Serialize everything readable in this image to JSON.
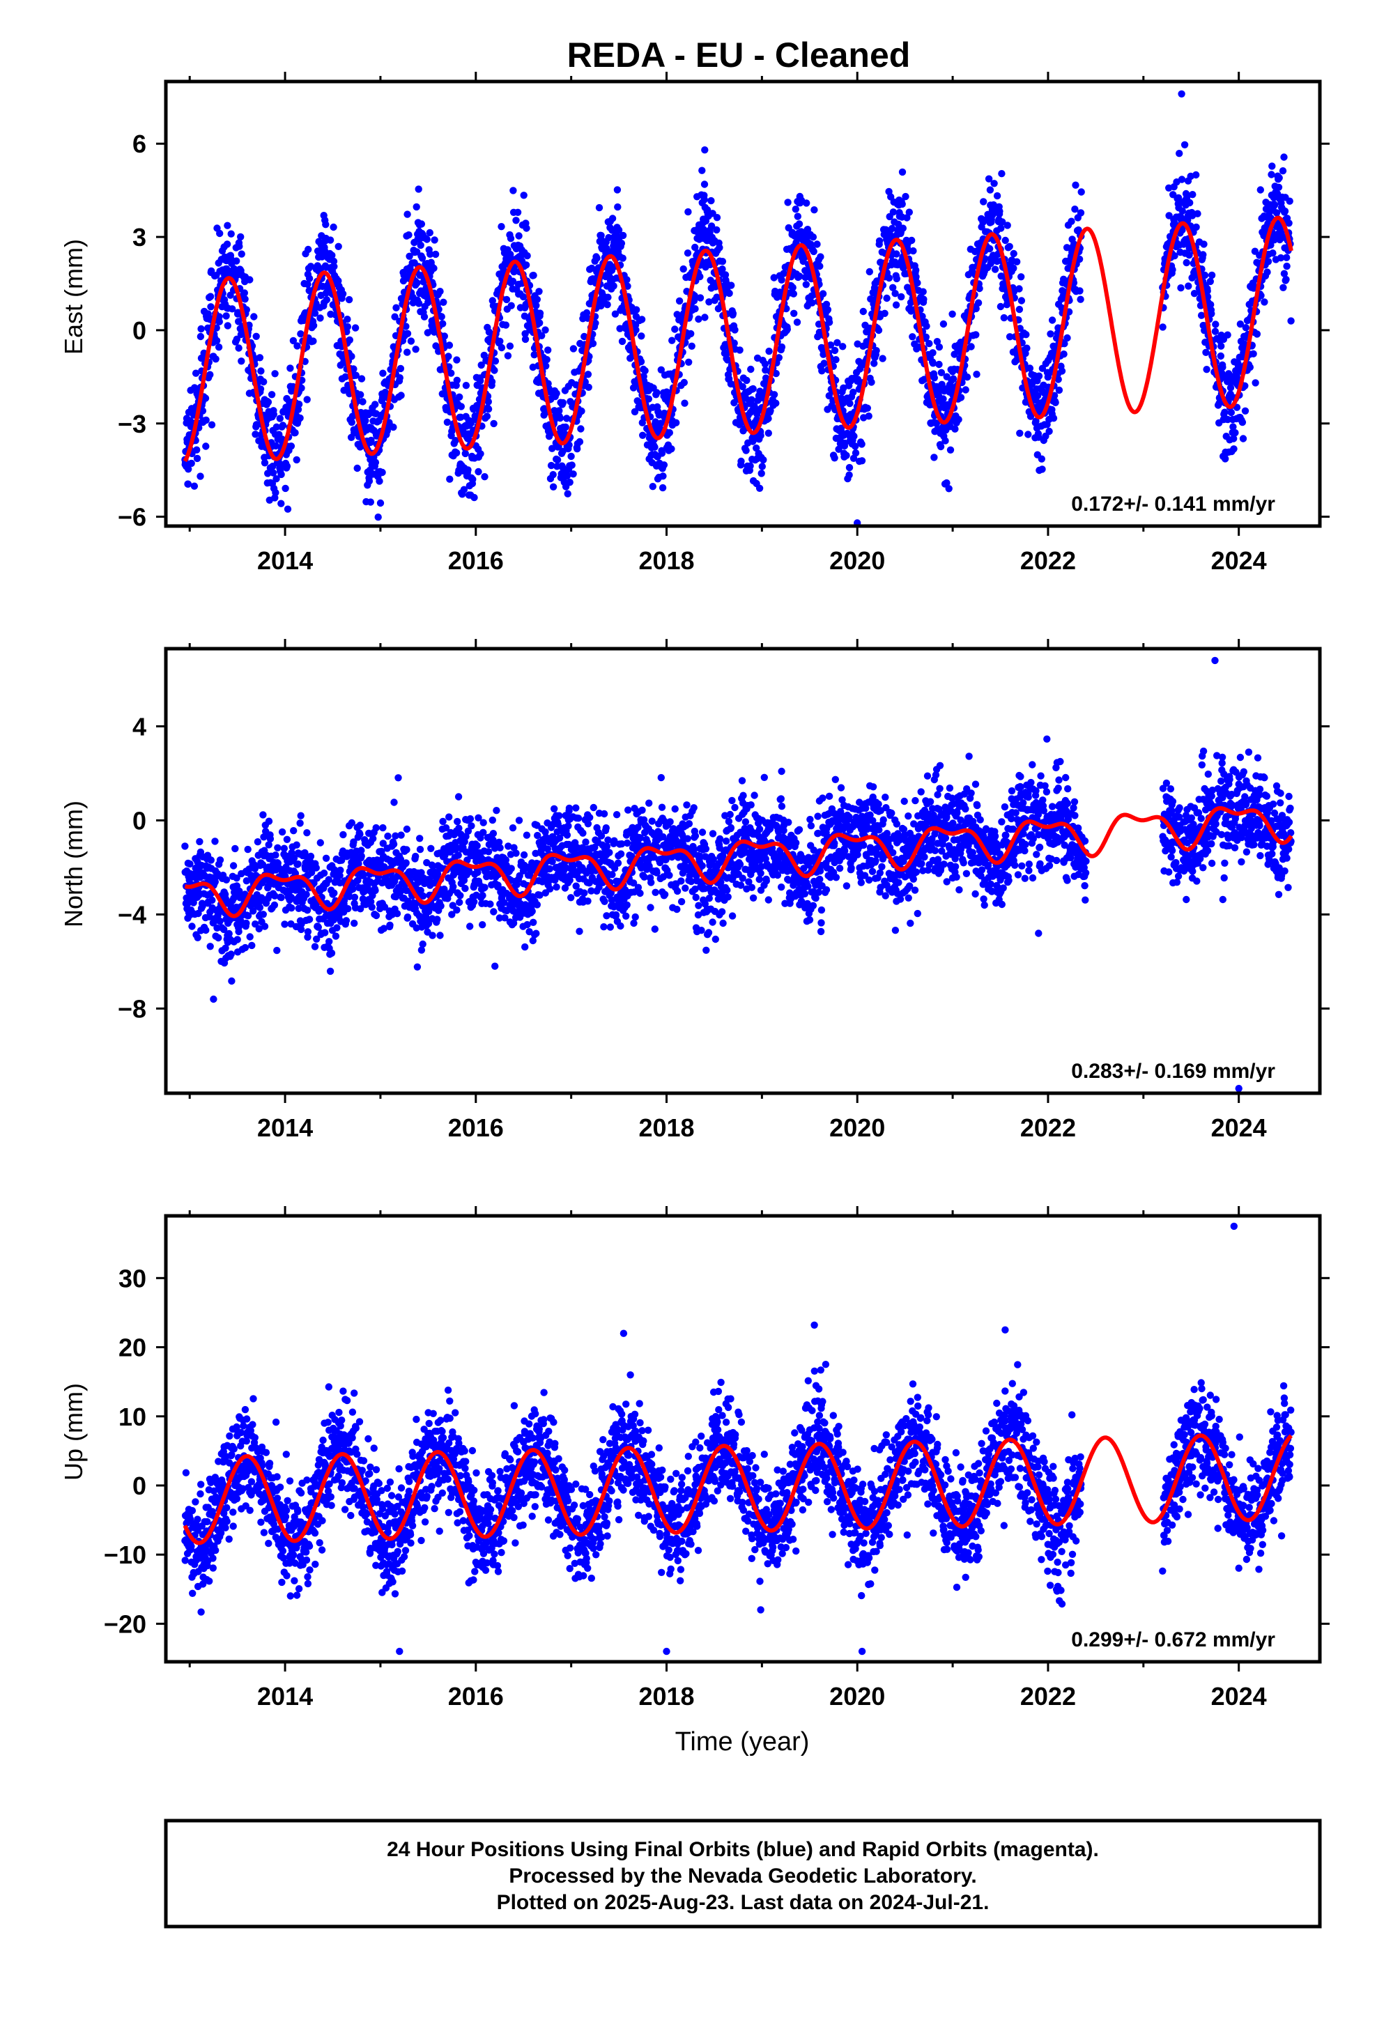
{
  "chart_data": [
    {
      "type": "scatter",
      "title": "REDA  - EU - Cleaned",
      "ylabel": "East (mm)",
      "xlim": [
        2012.75,
        2024.85
      ],
      "ylim": [
        -6.3,
        8.0
      ],
      "yticks": [
        -6,
        -3,
        0,
        3,
        6
      ],
      "xticks": [
        2014,
        2016,
        2018,
        2020,
        2022,
        2024
      ],
      "grid": false,
      "rate_text": "0.172+/- 0.141 mm/yr",
      "series": [
        {
          "role": "observations",
          "color": "#0000ff",
          "model": {
            "t0": 2012.95,
            "t1": 2024.55,
            "offset": -0.3,
            "trend": 0.172,
            "amp_annual": 3.0,
            "amp_end": 3.0,
            "phase_annual_yr": 0.16,
            "amp_semi": 0.0,
            "phase_semi_yr": 0.0,
            "amp_growth_annual": 0.0,
            "scatter": 0.9
          },
          "gaps": [
            [
              2022.35,
              2023.2
            ]
          ],
          "outliers": [
            {
              "x": 2023.4,
              "y": 7.6
            },
            {
              "x": 2018.4,
              "y": 5.8
            },
            {
              "x": 2020.0,
              "y": -6.2
            }
          ]
        },
        {
          "role": "model_fit",
          "color": "#ff0000",
          "fit": {
            "t0": 2012.95,
            "t1": 2024.55,
            "offset": -0.4,
            "trend": 0.172,
            "amp_start": 2.95,
            "amp_end": 3.0,
            "phase_annual_yr": 0.16,
            "amp_semi": 0.0,
            "phase_semi_yr": 0.0
          }
        }
      ]
    },
    {
      "type": "scatter",
      "ylabel": "North (mm)",
      "xlim": [
        2012.75,
        2024.85
      ],
      "ylim": [
        -11.6,
        7.3
      ],
      "yticks": [
        -8,
        -4,
        0,
        4
      ],
      "xticks": [
        2014,
        2016,
        2018,
        2020,
        2022,
        2024
      ],
      "grid": false,
      "rate_text": "0.283+/- 0.169 mm/yr",
      "series": [
        {
          "role": "observations",
          "color": "#0000ff",
          "model": {
            "t0": 2012.95,
            "t1": 2024.55,
            "offset": -1.6,
            "trend": 0.283,
            "amp_annual": 0.7,
            "amp_end": 0.7,
            "phase_annual_yr": 0.7,
            "amp_semi": 0.35,
            "phase_semi_yr": 0.1,
            "amp_growth_annual": 0.0,
            "scatter": 1.05
          },
          "gaps": [
            [
              2022.4,
              2023.2
            ]
          ],
          "outliers": [
            {
              "x": 2013.25,
              "y": -7.6
            },
            {
              "x": 2016.2,
              "y": -6.2
            },
            {
              "x": 2021.9,
              "y": -4.8
            },
            {
              "x": 2023.75,
              "y": 6.8
            },
            {
              "x": 2024.0,
              "y": -11.4
            }
          ]
        },
        {
          "role": "model_fit",
          "color": "#ff0000",
          "fit": {
            "t0": 2012.95,
            "t1": 2024.55,
            "offset": -1.6,
            "trend": 0.283,
            "amp_start": 0.7,
            "amp_end": 0.7,
            "phase_annual_yr": 0.7,
            "amp_semi": 0.35,
            "phase_semi_yr": 0.1
          }
        }
      ]
    },
    {
      "type": "scatter",
      "ylabel": "Up (mm)",
      "xlabel": "Time (year)",
      "xlim": [
        2012.75,
        2024.85
      ],
      "ylim": [
        -25.5,
        39.0
      ],
      "yticks": [
        -20,
        -10,
        0,
        10,
        20,
        30
      ],
      "xticks": [
        2014,
        2016,
        2018,
        2020,
        2022,
        2024
      ],
      "grid": false,
      "rate_text": "0.299+/- 0.672 mm/yr",
      "series": [
        {
          "role": "observations",
          "color": "#0000ff",
          "model": {
            "t0": 2012.95,
            "t1": 2024.55,
            "offset": -0.5,
            "trend": 0.299,
            "amp_annual": 6.2,
            "amp_end": 6.2,
            "phase_annual_yr": 0.35,
            "amp_semi": 0.0,
            "phase_semi_yr": 0.0,
            "amp_growth_annual": 0.0,
            "scatter": 3.8
          },
          "gaps": [
            [
              2022.35,
              2023.2
            ]
          ],
          "outliers": [
            {
              "x": 2023.95,
              "y": 37.5
            },
            {
              "x": 2019.55,
              "y": 23.2
            },
            {
              "x": 2017.55,
              "y": 22.0
            },
            {
              "x": 2021.55,
              "y": 22.5
            },
            {
              "x": 2015.2,
              "y": -24.0
            },
            {
              "x": 2020.05,
              "y": -24.0
            },
            {
              "x": 2018.0,
              "y": -24.0
            }
          ]
        },
        {
          "role": "model_fit",
          "color": "#ff0000",
          "fit": {
            "t0": 2012.95,
            "t1": 2024.55,
            "offset": -0.5,
            "trend": 0.299,
            "amp_start": 6.2,
            "amp_end": 6.2,
            "phase_annual_yr": 0.35,
            "amp_semi": 0.0,
            "phase_semi_yr": 0.0
          }
        }
      ]
    }
  ],
  "footer": {
    "line1": "24 Hour Positions Using Final Orbits (blue) and Rapid Orbits (magenta).",
    "line2": "Processed by the Nevada Geodetic Laboratory.",
    "line3": "Plotted on 2025-Aug-23. Last data on 2024-Jul-21."
  }
}
